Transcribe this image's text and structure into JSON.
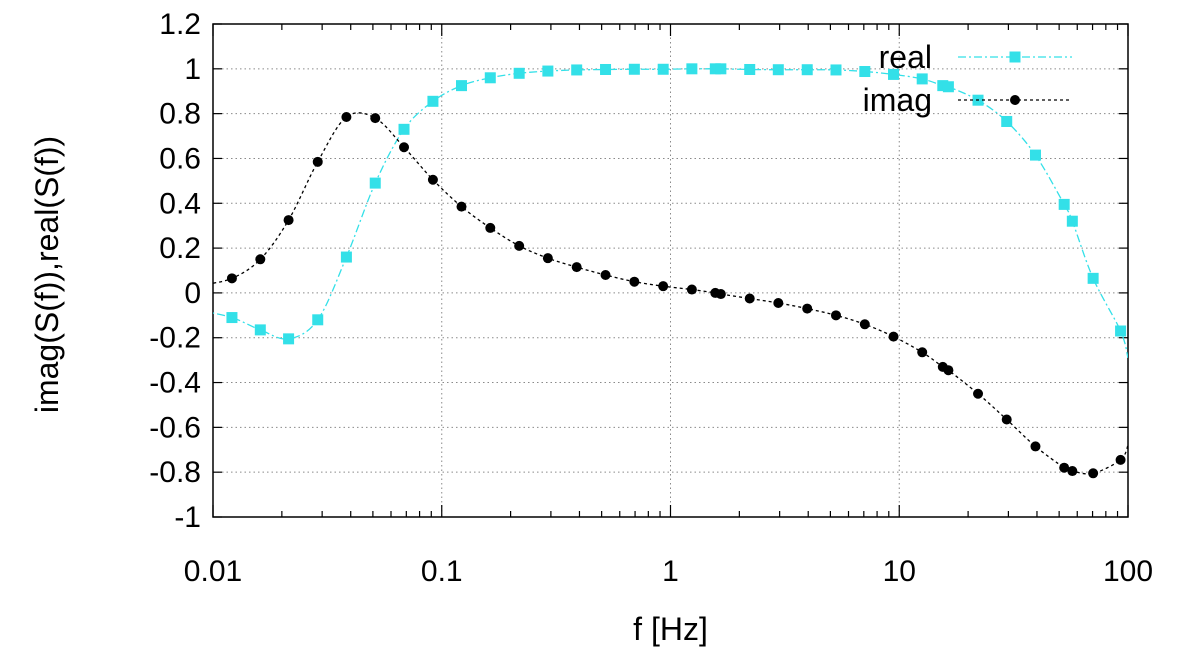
{
  "chart_data": {
    "type": "line",
    "title": "",
    "xlabel": "f [Hz]",
    "ylabel": "imag(S(f)),real(S(f))",
    "xscale": "log",
    "xlim": [
      0.01,
      100
    ],
    "ylim": [
      -1,
      1.2
    ],
    "xticks": [
      0.01,
      0.1,
      1,
      10,
      100
    ],
    "xtick_labels": [
      "0.01",
      "0.1",
      "1",
      "10",
      "100"
    ],
    "yticks": [
      -1,
      -0.8,
      -0.6,
      -0.4,
      -0.2,
      0,
      0.2,
      0.4,
      0.6,
      0.8,
      1,
      1.2
    ],
    "ytick_labels": [
      "-1",
      "-0.8",
      "-0.6",
      "-0.4",
      "-0.2",
      "0",
      "0.2",
      "0.4",
      "0.6",
      "0.8",
      "1",
      "1.2"
    ],
    "grid": true,
    "legend_position": "top-right",
    "series": [
      {
        "name": "real",
        "color": "#33e0e8",
        "marker": "square",
        "line_style": "dash-dot",
        "x": [
          0.0089,
          0.0121,
          0.0161,
          0.0214,
          0.0287,
          0.0383,
          0.0512,
          0.0684,
          0.0915,
          0.122,
          0.163,
          0.218,
          0.291,
          0.389,
          0.52,
          0.695,
          0.929,
          1.24,
          1.57,
          1.66,
          2.22,
          2.96,
          3.96,
          5.29,
          7.07,
          9.44,
          12.6,
          15.5,
          16.4,
          22.1,
          29.5,
          39.4,
          52.6,
          57.1,
          70.4,
          92.8,
          100
        ],
        "y": [
          -0.08,
          -0.11,
          -0.165,
          -0.205,
          -0.12,
          0.16,
          0.49,
          0.73,
          0.855,
          0.925,
          0.96,
          0.98,
          0.99,
          0.995,
          0.997,
          0.998,
          0.998,
          1.0,
          1.0,
          1.0,
          0.997,
          0.996,
          0.996,
          0.995,
          0.988,
          0.975,
          0.955,
          0.925,
          0.92,
          0.86,
          0.765,
          0.615,
          0.395,
          0.32,
          0.065,
          -0.17,
          -0.29
        ]
      },
      {
        "name": "imag",
        "color": "#000000",
        "marker": "circle",
        "line_style": "dashed",
        "x": [
          0.0089,
          0.0121,
          0.0161,
          0.0214,
          0.0287,
          0.0383,
          0.0512,
          0.0684,
          0.0915,
          0.122,
          0.163,
          0.218,
          0.291,
          0.389,
          0.52,
          0.695,
          0.929,
          1.24,
          1.57,
          1.66,
          2.22,
          2.96,
          3.96,
          5.29,
          7.07,
          9.44,
          12.6,
          15.5,
          16.4,
          22.1,
          29.5,
          39.4,
          52.6,
          57.1,
          70.4,
          92.8,
          100
        ],
        "y": [
          0.035,
          0.065,
          0.15,
          0.325,
          0.585,
          0.785,
          0.78,
          0.65,
          0.505,
          0.385,
          0.29,
          0.21,
          0.155,
          0.115,
          0.08,
          0.05,
          0.03,
          0.015,
          0.0,
          -0.005,
          -0.025,
          -0.045,
          -0.07,
          -0.1,
          -0.14,
          -0.195,
          -0.265,
          -0.33,
          -0.345,
          -0.45,
          -0.565,
          -0.685,
          -0.78,
          -0.795,
          -0.805,
          -0.745,
          -0.68
        ]
      }
    ]
  }
}
